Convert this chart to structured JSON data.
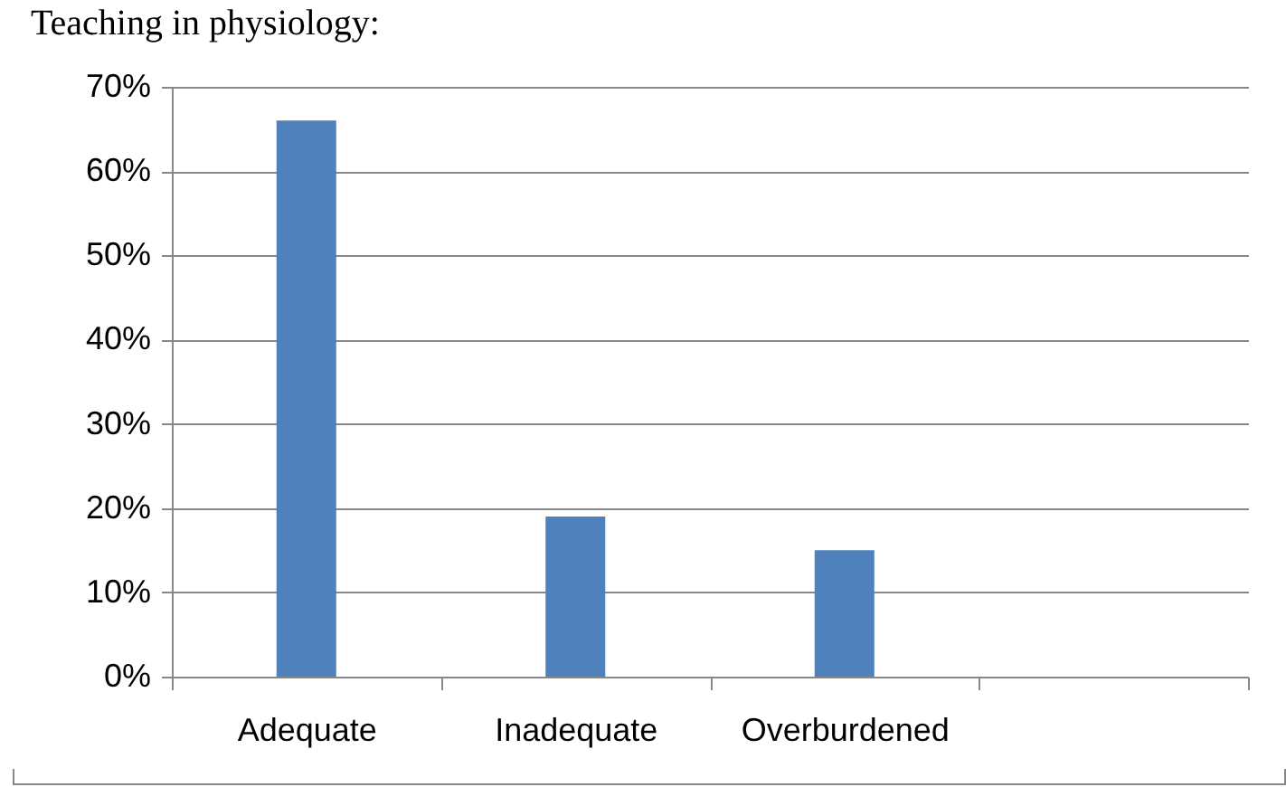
{
  "chart_data": {
    "type": "bar",
    "title": "Teaching in physiology:",
    "categories": [
      "Adequate",
      "Inadequate",
      "Overburdened",
      null
    ],
    "values": [
      66,
      19,
      15,
      null
    ],
    "color": "#4f81bd",
    "ylim": [
      0,
      70
    ],
    "yticks": [
      {
        "value": 0,
        "label": "0%"
      },
      {
        "value": 10,
        "label": "10%"
      },
      {
        "value": 20,
        "label": "20%"
      },
      {
        "value": 30,
        "label": "30%"
      },
      {
        "value": 40,
        "label": "40%"
      },
      {
        "value": 50,
        "label": "50%"
      },
      {
        "value": 60,
        "label": "60%"
      },
      {
        "value": 70,
        "label": "70%"
      }
    ],
    "grid": "y"
  }
}
